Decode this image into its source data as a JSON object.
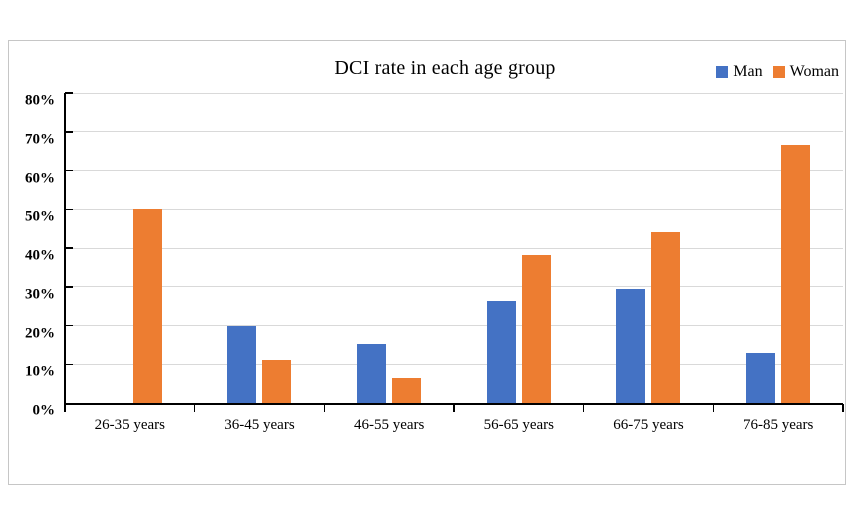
{
  "chart_data": {
    "type": "bar",
    "title": "DCI rate in each age group",
    "categories": [
      "26-35 years",
      "36-45 years",
      "46-55 years",
      "56-65 years",
      "66-75 years",
      "76-85 years"
    ],
    "series": [
      {
        "name": "Man",
        "color": "#4472C4",
        "values": [
          0,
          20,
          15.2,
          26.3,
          29.4,
          13
        ]
      },
      {
        "name": "Woman",
        "color": "#ED7D31",
        "values": [
          50,
          11.1,
          6.5,
          38.3,
          44.1,
          66.7
        ]
      }
    ],
    "xlabel": "",
    "ylabel": "",
    "y_axis": {
      "min": 0,
      "max": 80,
      "step": 10,
      "tick_labels": [
        "0%",
        "10%",
        "20%",
        "30%",
        "40%",
        "50%",
        "60%",
        "70%",
        "80%"
      ]
    },
    "grid": true,
    "gridline_color": "#D9D9D9",
    "axis_color": "#000000",
    "legend_position": "top-right"
  }
}
